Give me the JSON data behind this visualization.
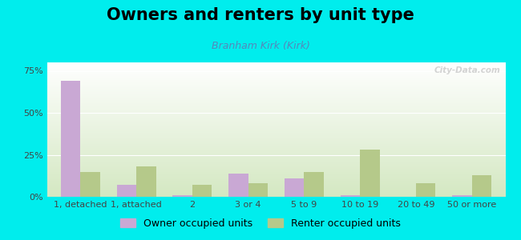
{
  "title": "Owners and renters by unit type",
  "subtitle": "Branham Kirk (Kirk)",
  "categories": [
    "1, detached",
    "1, attached",
    "2",
    "3 or 4",
    "5 to 9",
    "10 to 19",
    "20 to 49",
    "50 or more"
  ],
  "owner_values": [
    69,
    7,
    1,
    14,
    11,
    1,
    0,
    1
  ],
  "renter_values": [
    15,
    18,
    7,
    8,
    15,
    28,
    8,
    13
  ],
  "owner_color": "#c9a8d4",
  "renter_color": "#b5c98a",
  "background_color": "#00eded",
  "plot_bg_top": "#ffffff",
  "plot_bg_bottom": "#d4e8c2",
  "yticks": [
    0,
    25,
    50,
    75
  ],
  "ylim": [
    0,
    80
  ],
  "bar_width": 0.35,
  "title_fontsize": 15,
  "subtitle_fontsize": 9,
  "tick_fontsize": 8,
  "legend_fontsize": 9,
  "watermark_text": "City-Data.com"
}
